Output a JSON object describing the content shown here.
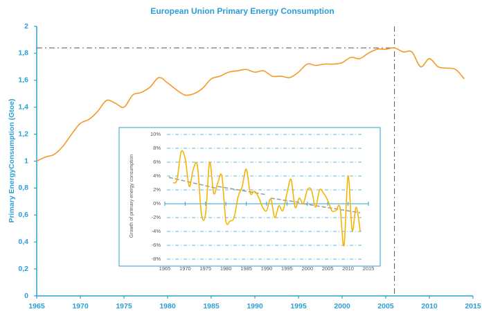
{
  "chart_data": [
    {
      "type": "line",
      "title": "European Union Primary Energy Consumption",
      "ylabel": "Primary EnergyConsumption (Gtoe)",
      "color": "#f39a26",
      "x": [
        1965,
        1966,
        1967,
        1968,
        1969,
        1970,
        1971,
        1972,
        1973,
        1974,
        1975,
        1976,
        1977,
        1978,
        1979,
        1980,
        1981,
        1982,
        1983,
        1984,
        1985,
        1986,
        1987,
        1988,
        1989,
        1990,
        1991,
        1992,
        1993,
        1994,
        1995,
        1996,
        1997,
        1998,
        1999,
        2000,
        2001,
        2002,
        2003,
        2004,
        2005,
        2006,
        2007,
        2008,
        2009,
        2010,
        2011,
        2012,
        2013,
        2014
      ],
      "values": [
        1.0,
        1.03,
        1.05,
        1.11,
        1.2,
        1.28,
        1.31,
        1.37,
        1.45,
        1.43,
        1.4,
        1.49,
        1.51,
        1.55,
        1.62,
        1.58,
        1.53,
        1.49,
        1.5,
        1.54,
        1.61,
        1.63,
        1.66,
        1.67,
        1.68,
        1.66,
        1.67,
        1.63,
        1.63,
        1.62,
        1.66,
        1.72,
        1.71,
        1.72,
        1.72,
        1.73,
        1.77,
        1.76,
        1.8,
        1.83,
        1.83,
        1.84,
        1.81,
        1.81,
        1.7,
        1.76,
        1.7,
        1.69,
        1.68,
        1.61
      ],
      "xlim": [
        1965,
        2015
      ],
      "xticks": [
        1965,
        1970,
        1975,
        1980,
        1985,
        1990,
        1995,
        2000,
        2005,
        2010,
        2015
      ],
      "ylim": [
        0,
        2
      ],
      "yticks": [
        0,
        {
          "value": 0.2,
          "label": "0,2"
        },
        {
          "value": 0.4,
          "label": "0,4"
        },
        {
          "value": 0.6,
          "label": "0,6"
        },
        {
          "value": 0.8,
          "label": "0,8"
        },
        1,
        {
          "value": 1.2,
          "label": "1,2"
        },
        {
          "value": 1.4,
          "label": "1,4"
        },
        {
          "value": 1.6,
          "label": "1,6"
        },
        {
          "value": 1.8,
          "label": "1,8"
        },
        2
      ],
      "reference_lines": {
        "x": 2006,
        "y": 1.84
      }
    },
    {
      "type": "line",
      "ylabel": "Growth of primary energy consumption",
      "color": "#f5b400",
      "x": [
        1967,
        1968,
        1969,
        1970,
        1971,
        1972,
        1973,
        1974,
        1975,
        1976,
        1977,
        1978,
        1979,
        1980,
        1981,
        1982,
        1983,
        1984,
        1985,
        1986,
        1987,
        1988,
        1989,
        1990,
        1991,
        1992,
        1993,
        1994,
        1995,
        1996,
        1997,
        1998,
        1999,
        2000,
        2001,
        2002,
        2003,
        2004,
        2005,
        2006,
        2007,
        2008,
        2009,
        2010,
        2011,
        2012,
        2013
      ],
      "values": [
        3,
        3.5,
        7.5,
        6.5,
        2.5,
        5,
        5.5,
        -1.5,
        -1.5,
        6,
        1.5,
        3,
        4,
        -2.5,
        -2.5,
        -2,
        1,
        2.5,
        5,
        1.5,
        1.8,
        1,
        -0.5,
        -1,
        0.7,
        -2,
        -0.3,
        -1,
        1.5,
        3.5,
        -0.5,
        0.8,
        0,
        2,
        2,
        -0.5,
        2,
        1.5,
        0.5,
        -1,
        -1,
        -0.5,
        -6,
        4,
        -3.8,
        -0.5,
        -4
      ],
      "xlim": [
        1965,
        2015
      ],
      "xticks": [
        1965,
        1970,
        1975,
        1980,
        1985,
        1990,
        1995,
        2000,
        2005,
        2010,
        2015
      ],
      "ylim": [
        -8,
        10
      ],
      "yticks": [
        {
          "value": -8,
          "label": "-8%"
        },
        {
          "value": -6,
          "label": "-6%"
        },
        {
          "value": -4,
          "label": "-4%"
        },
        {
          "value": -2,
          "label": "-2%"
        },
        {
          "value": 0,
          "label": "0%"
        },
        {
          "value": 2,
          "label": "2%"
        },
        {
          "value": 4,
          "label": "4%"
        },
        {
          "value": 6,
          "label": "6%"
        },
        {
          "value": 8,
          "label": "8%"
        },
        {
          "value": 10,
          "label": "10%"
        }
      ],
      "grid": true,
      "trend_lines": [
        {
          "x": [
            1966,
            1978
          ],
          "y": [
            3.8,
            2.2
          ]
        },
        {
          "x": [
            1978,
            1990
          ],
          "y": [
            2.5,
            1.3
          ]
        },
        {
          "x": [
            1991,
            1998
          ],
          "y": [
            0.8,
            0.2
          ]
        },
        {
          "x": [
            1999,
            2013
          ],
          "y": [
            0,
            -1.3
          ]
        }
      ]
    }
  ]
}
